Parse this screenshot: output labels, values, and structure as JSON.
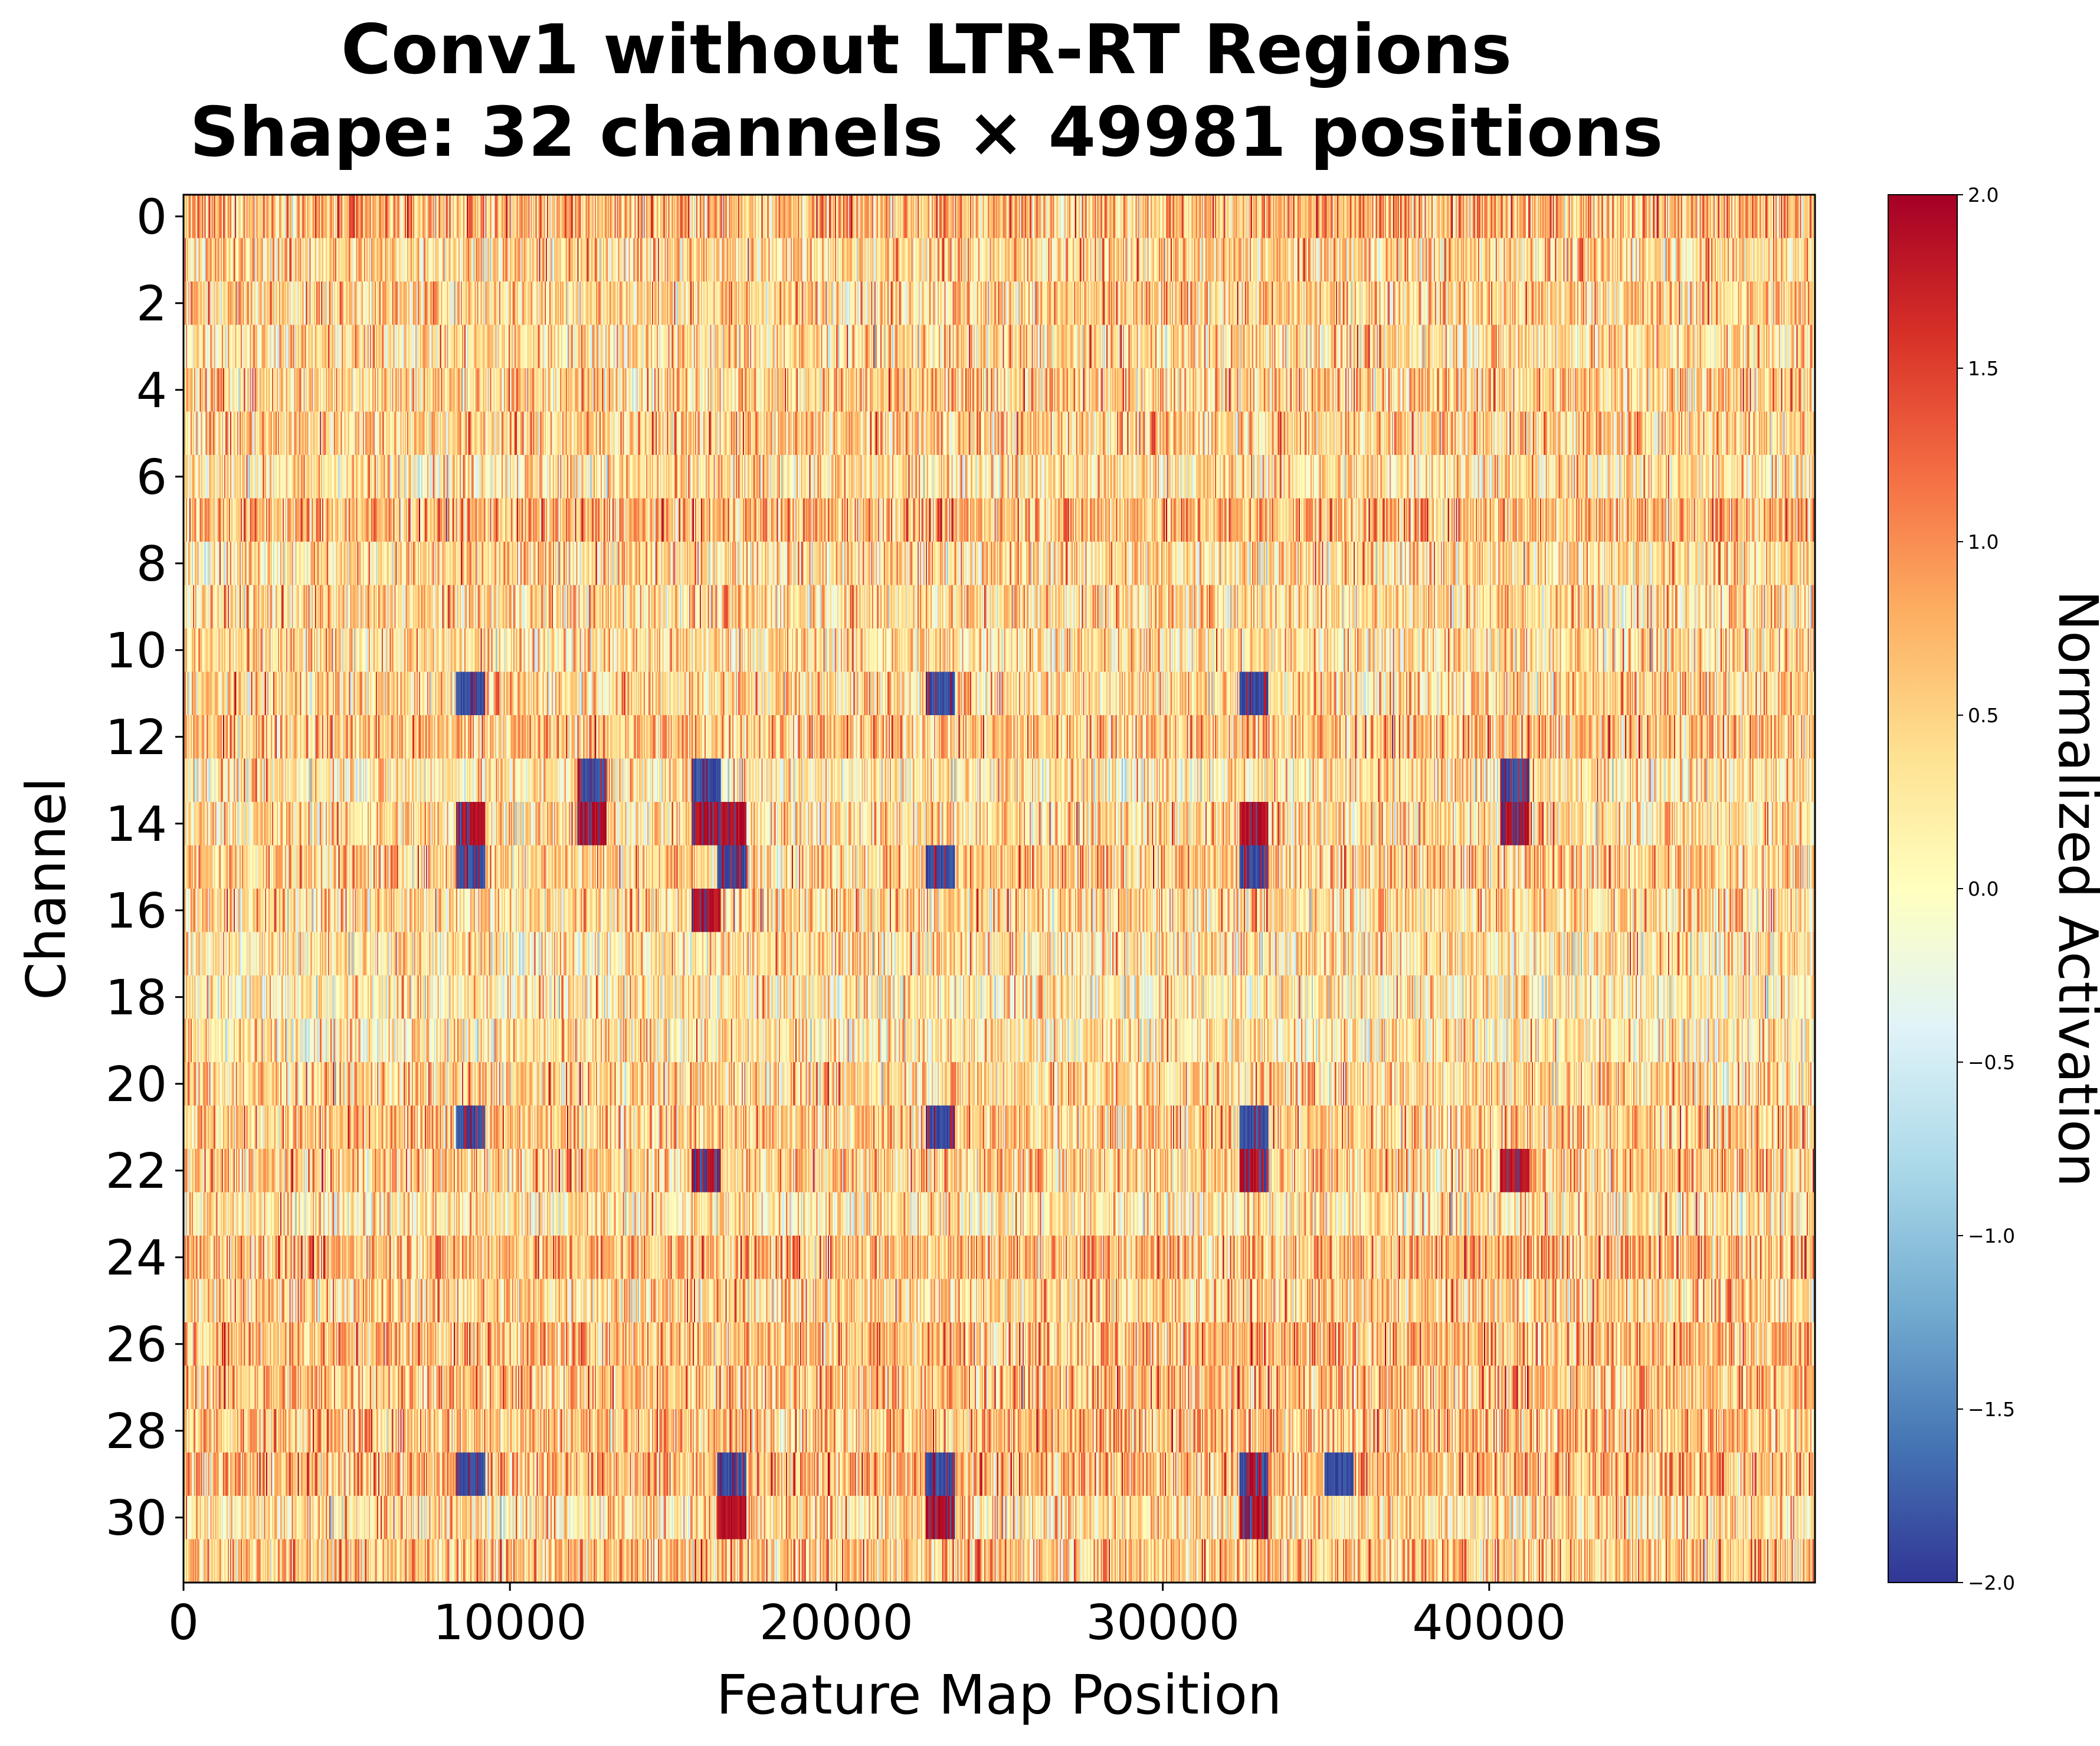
{
  "chart_data": {
    "type": "heatmap",
    "title": "Conv1 without LTR-RT Regions",
    "subtitle": "Shape: 32 channels × 49981 positions",
    "xlabel": "Feature Map Position",
    "ylabel": "Channel",
    "colorbar_label": "Normalized Activation",
    "colormap": "RdYlBu_r",
    "x_range": [
      0,
      49981
    ],
    "y_range": [
      0,
      31
    ],
    "n_channels": 32,
    "n_positions": 49981,
    "value_range": [
      -2.0,
      2.0
    ],
    "x_ticks": [
      "0",
      "10000",
      "20000",
      "30000",
      "40000"
    ],
    "x_tick_values": [
      0,
      10000,
      20000,
      30000,
      40000
    ],
    "y_ticks": [
      "0",
      "2",
      "4",
      "6",
      "8",
      "10",
      "12",
      "14",
      "16",
      "18",
      "20",
      "22",
      "24",
      "26",
      "28",
      "30"
    ],
    "y_tick_values": [
      0,
      2,
      4,
      6,
      8,
      10,
      12,
      14,
      16,
      18,
      20,
      22,
      24,
      26,
      28,
      30
    ],
    "colorbar_ticks": [
      "2.0",
      "1.5",
      "1.0",
      "0.5",
      "0.0",
      "−0.5",
      "−1.0",
      "−1.5",
      "−2.0"
    ],
    "colorbar_tick_values": [
      2.0,
      1.5,
      1.0,
      0.5,
      0.0,
      -0.5,
      -1.0,
      -1.5,
      -2.0
    ],
    "hotspots": [
      {
        "position": 8800,
        "channels": [
          11,
          14,
          15,
          21,
          29
        ],
        "sign": "mixed"
      },
      {
        "position": 12500,
        "channels": [
          13,
          14
        ],
        "sign": "mixed"
      },
      {
        "position": 16000,
        "channels": [
          13,
          14,
          16,
          22
        ],
        "sign": "mixed"
      },
      {
        "position": 16800,
        "channels": [
          14,
          15,
          29,
          30
        ],
        "sign": "mixed"
      },
      {
        "position": 23200,
        "channels": [
          11,
          15,
          21,
          29,
          30
        ],
        "sign": "mixed"
      },
      {
        "position": 32800,
        "channels": [
          11,
          14,
          15,
          21,
          22,
          29,
          30
        ],
        "sign": "mixed"
      },
      {
        "position": 35400,
        "channels": [
          29
        ],
        "sign": "negative"
      },
      {
        "position": 40800,
        "channels": [
          13,
          14,
          22
        ],
        "sign": "mixed"
      }
    ],
    "grid": false,
    "legend": "colorbar-right"
  }
}
